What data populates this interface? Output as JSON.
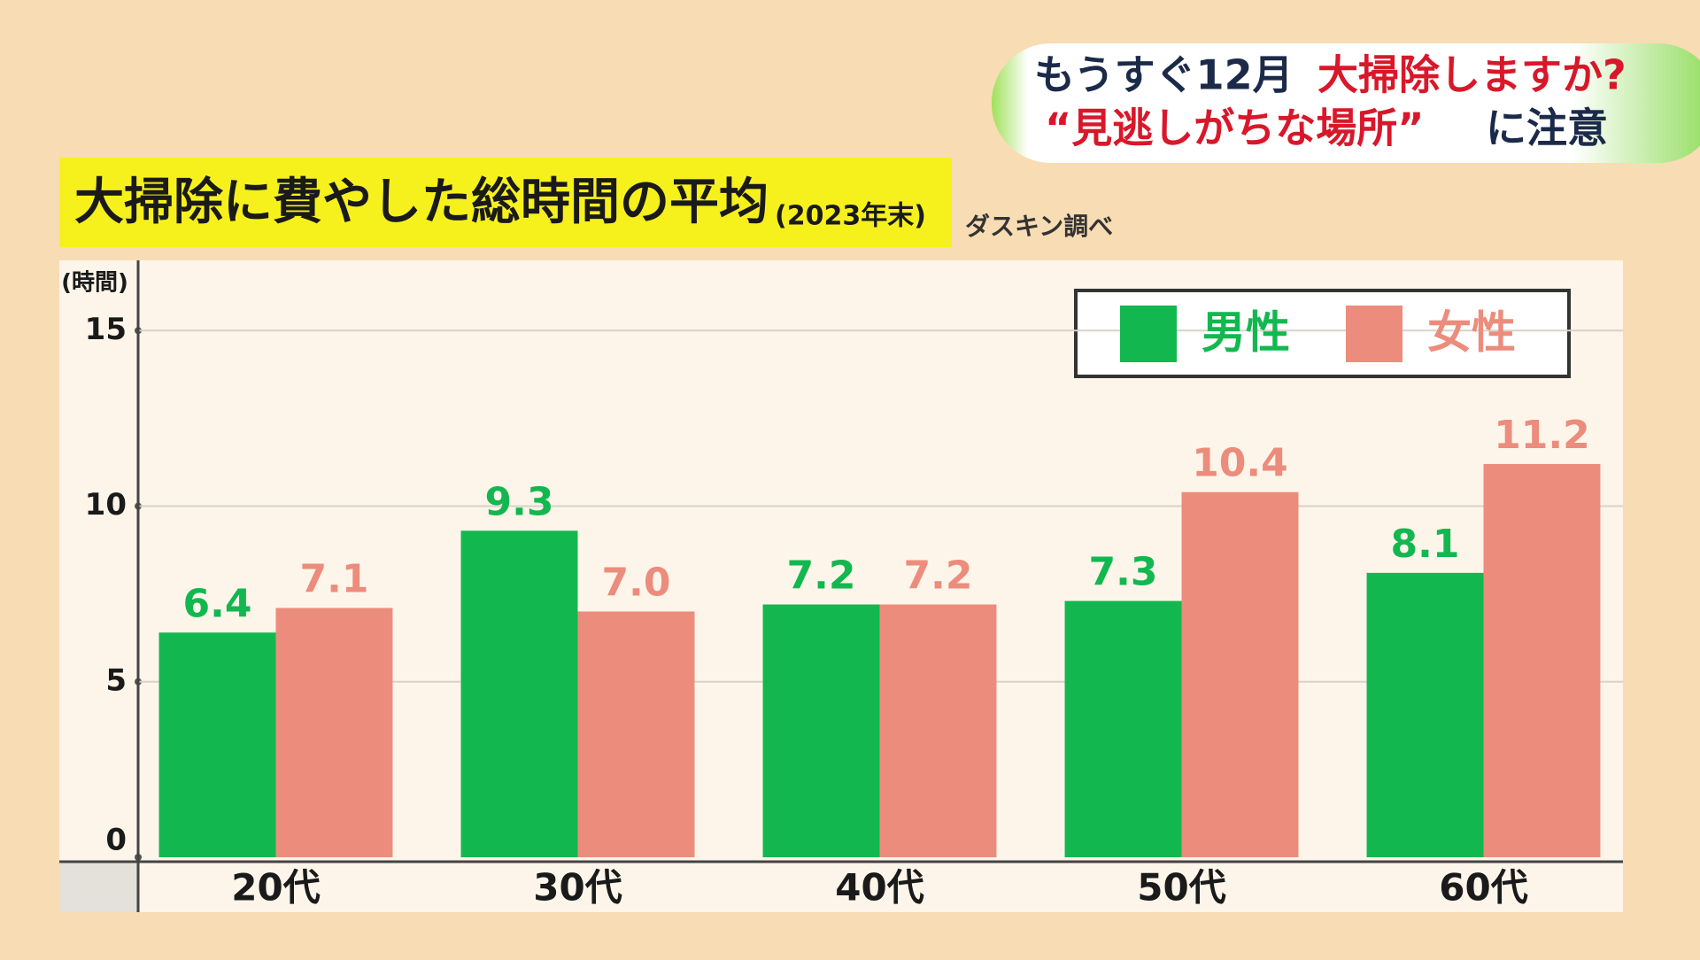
{
  "banner": {
    "line1": [
      "もうすぐ12月",
      "大掃除しますか?"
    ],
    "line2": [
      "“見逃しがちな場所”",
      "に注意"
    ]
  },
  "chart_data": {
    "type": "bar",
    "title": "大掃除に費やした総時間の平均",
    "subtitle": "(2023年末)",
    "source": "ダスキン調べ",
    "y_label": "(時間)",
    "categories": [
      "20代",
      "30代",
      "40代",
      "50代",
      "60代"
    ],
    "series": [
      {
        "name": "男性",
        "color": "#12b84f",
        "values": [
          6.4,
          9.3,
          7.2,
          7.3,
          8.1
        ],
        "value_labels": [
          "6.4",
          "9.3",
          "7.2",
          "7.3",
          "8.1"
        ]
      },
      {
        "name": "女性",
        "color": "#ec8c7c",
        "values": [
          7.1,
          7.0,
          7.2,
          10.4,
          11.2
        ],
        "value_labels": [
          "7.1",
          "7.0",
          "7.2",
          "10.4",
          "11.2"
        ]
      }
    ],
    "ylim": [
      0,
      17
    ],
    "yticks": [
      0,
      5,
      10,
      15
    ],
    "grid": true,
    "legend": "top-right"
  }
}
